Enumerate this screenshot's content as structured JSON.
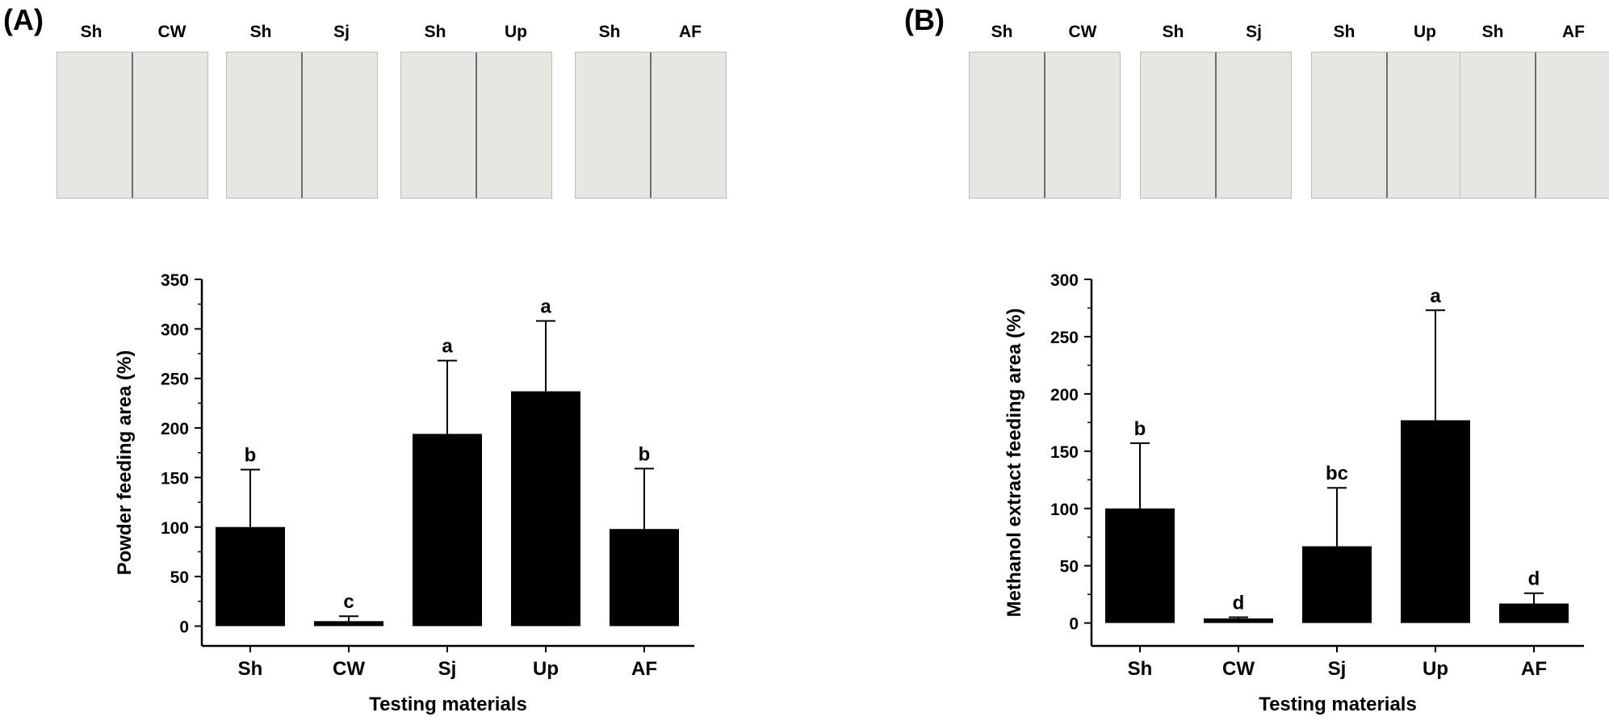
{
  "panels": [
    {
      "id": "A",
      "label": "(A)",
      "photo_pairs": [
        {
          "left": "Sh",
          "right": "CW"
        },
        {
          "left": "Sh",
          "right": "Sj"
        },
        {
          "left": "Sh",
          "right": "Up"
        },
        {
          "left": "Sh",
          "right": "AF"
        }
      ]
    },
    {
      "id": "B",
      "label": "(B)",
      "photo_pairs": [
        {
          "left": "Sh",
          "right": "CW"
        },
        {
          "left": "Sh",
          "right": "Sj"
        },
        {
          "left": "Sh",
          "right": "Up"
        },
        {
          "left": "Sh",
          "right": "AF"
        }
      ]
    }
  ],
  "chart_data": [
    {
      "type": "bar",
      "panel": "A",
      "categories": [
        "Sh",
        "CW",
        "Sj",
        "Up",
        "AF"
      ],
      "values": [
        100,
        5,
        194,
        237,
        98
      ],
      "error_upper": [
        158,
        10,
        268,
        308,
        159
      ],
      "significance_letters": [
        "b",
        "c",
        "a",
        "a",
        "b"
      ],
      "title": "",
      "xlabel": "Testing materials",
      "ylabel": "Powder feeding area (%)",
      "ylim": [
        -20,
        350
      ],
      "yticks": [
        0,
        50,
        100,
        150,
        200,
        250,
        300,
        350
      ],
      "bar_color": "#000000",
      "grid": false,
      "legend": "none"
    },
    {
      "type": "bar",
      "panel": "B",
      "categories": [
        "Sh",
        "CW",
        "Sj",
        "Up",
        "AF"
      ],
      "values": [
        100,
        4,
        67,
        177,
        17
      ],
      "error_upper": [
        157,
        5,
        118,
        273,
        26
      ],
      "significance_letters": [
        "b",
        "d",
        "bc",
        "a",
        "d"
      ],
      "title": "",
      "xlabel": "Testing materials",
      "ylabel": "Methanol extract feeding area (%)",
      "ylim": [
        -20,
        300
      ],
      "yticks": [
        0,
        50,
        100,
        150,
        200,
        250,
        300
      ],
      "bar_color": "#000000",
      "grid": false,
      "legend": "none"
    }
  ]
}
